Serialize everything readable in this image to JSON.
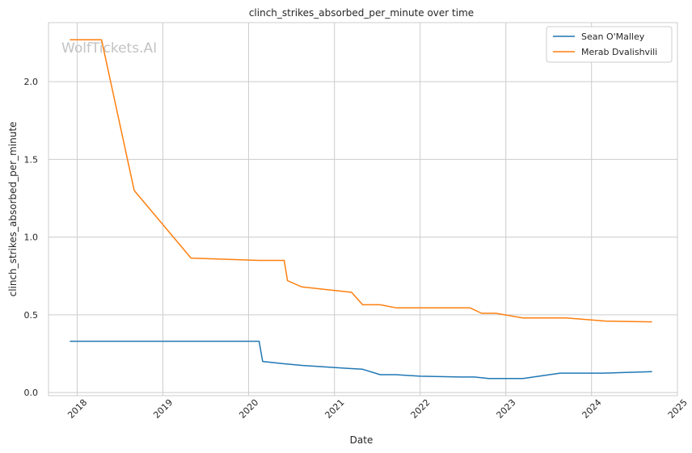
{
  "chart_data": {
    "type": "line",
    "title": "clinch_strikes_absorbed_per_minute over time",
    "xlabel": "Date",
    "ylabel": "clinch_strikes_absorbed_per_minute",
    "watermark": "WolfTickets.AI",
    "x_range": [
      "2017-09-01",
      "2025-01-01"
    ],
    "ylim": [
      -0.02,
      2.38
    ],
    "x_ticks": [
      {
        "date": "2018-01-01",
        "label": "2018"
      },
      {
        "date": "2019-01-01",
        "label": "2019"
      },
      {
        "date": "2020-01-01",
        "label": "2020"
      },
      {
        "date": "2021-01-01",
        "label": "2021"
      },
      {
        "date": "2022-01-01",
        "label": "2022"
      },
      {
        "date": "2023-01-01",
        "label": "2023"
      },
      {
        "date": "2024-01-01",
        "label": "2024"
      },
      {
        "date": "2025-01-01",
        "label": "2025"
      }
    ],
    "y_ticks": [
      {
        "value": 0.0,
        "label": "0.0"
      },
      {
        "value": 0.5,
        "label": "0.5"
      },
      {
        "value": 1.0,
        "label": "1.0"
      },
      {
        "value": 1.5,
        "label": "1.5"
      },
      {
        "value": 2.0,
        "label": "2.0"
      }
    ],
    "grid": true,
    "legend_position": "top-right",
    "series": [
      {
        "name": "Sean O'Malley",
        "color": "#1f77b4",
        "points": [
          {
            "x": "2017-12-01",
            "y": 0.33
          },
          {
            "x": "2020-02-15",
            "y": 0.33
          },
          {
            "x": "2020-03-01",
            "y": 0.2
          },
          {
            "x": "2020-06-01",
            "y": 0.185
          },
          {
            "x": "2020-08-15",
            "y": 0.175
          },
          {
            "x": "2021-03-01",
            "y": 0.155
          },
          {
            "x": "2021-05-01",
            "y": 0.15
          },
          {
            "x": "2021-07-15",
            "y": 0.115
          },
          {
            "x": "2021-09-20",
            "y": 0.115
          },
          {
            "x": "2022-01-01",
            "y": 0.105
          },
          {
            "x": "2022-06-20",
            "y": 0.1
          },
          {
            "x": "2022-08-20",
            "y": 0.1
          },
          {
            "x": "2022-10-20",
            "y": 0.09
          },
          {
            "x": "2023-03-15",
            "y": 0.09
          },
          {
            "x": "2023-08-20",
            "y": 0.125
          },
          {
            "x": "2024-02-20",
            "y": 0.125
          },
          {
            "x": "2024-09-15",
            "y": 0.135
          }
        ]
      },
      {
        "name": "Merab Dvalishvili",
        "color": "#ff7f0e",
        "points": [
          {
            "x": "2017-12-01",
            "y": 2.27
          },
          {
            "x": "2018-04-15",
            "y": 2.27
          },
          {
            "x": "2018-09-01",
            "y": 1.3
          },
          {
            "x": "2019-05-01",
            "y": 0.865
          },
          {
            "x": "2020-02-15",
            "y": 0.85
          },
          {
            "x": "2020-06-01",
            "y": 0.85
          },
          {
            "x": "2020-06-15",
            "y": 0.72
          },
          {
            "x": "2020-08-15",
            "y": 0.68
          },
          {
            "x": "2021-03-15",
            "y": 0.645
          },
          {
            "x": "2021-05-01",
            "y": 0.565
          },
          {
            "x": "2021-07-15",
            "y": 0.565
          },
          {
            "x": "2021-09-20",
            "y": 0.545
          },
          {
            "x": "2022-08-01",
            "y": 0.545
          },
          {
            "x": "2022-09-20",
            "y": 0.51
          },
          {
            "x": "2022-11-20",
            "y": 0.51
          },
          {
            "x": "2023-03-15",
            "y": 0.48
          },
          {
            "x": "2023-09-15",
            "y": 0.48
          },
          {
            "x": "2024-03-01",
            "y": 0.46
          },
          {
            "x": "2024-09-15",
            "y": 0.455
          }
        ]
      }
    ]
  }
}
